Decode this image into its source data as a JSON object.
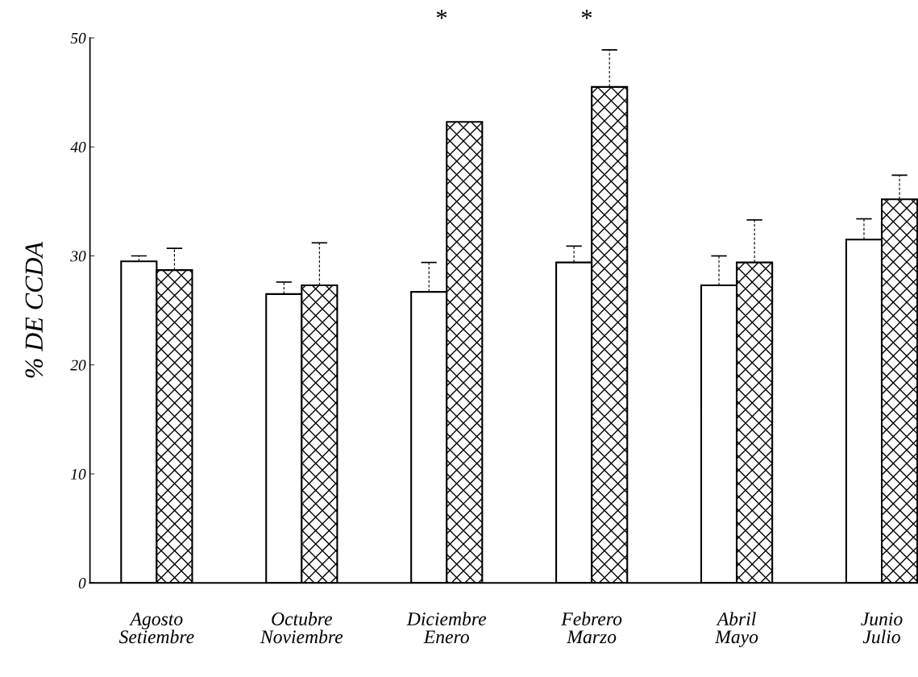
{
  "chart_data": {
    "type": "bar",
    "ylabel": "% DE CCDA",
    "categories": [
      "Agosto\nSetiembre",
      "Octubre\nNoviembre",
      "Diciembre\nEnero",
      "Febrero\nMarzo",
      "Abril\nMayo",
      "Junio\nJulio"
    ],
    "series": [
      {
        "color": "#ffffff",
        "values": [
          29.5,
          26.5,
          26.7,
          29.4,
          27.3,
          31.5
        ],
        "errors": [
          [
            29.5,
            30.0
          ],
          [
            26.5,
            27.6
          ],
          [
            26.7,
            29.4
          ],
          [
            29.4,
            30.9
          ],
          [
            27.3,
            30.0
          ],
          [
            31.5,
            33.4
          ]
        ]
      },
      {
        "color": "#000000",
        "values": [
          28.7,
          27.3,
          42.3,
          45.5,
          29.4,
          35.2
        ],
        "errors": [
          [
            28.7,
            30.7
          ],
          [
            27.3,
            31.2
          ],
          null,
          [
            45.5,
            48.9
          ],
          [
            29.4,
            33.3
          ],
          [
            35.2,
            37.4
          ]
        ]
      }
    ],
    "ylim": [
      0,
      50
    ],
    "yticks": [
      0,
      10,
      20,
      30,
      40,
      50
    ],
    "grid": false,
    "legend": false,
    "annotations": [
      "*",
      "*"
    ]
  }
}
